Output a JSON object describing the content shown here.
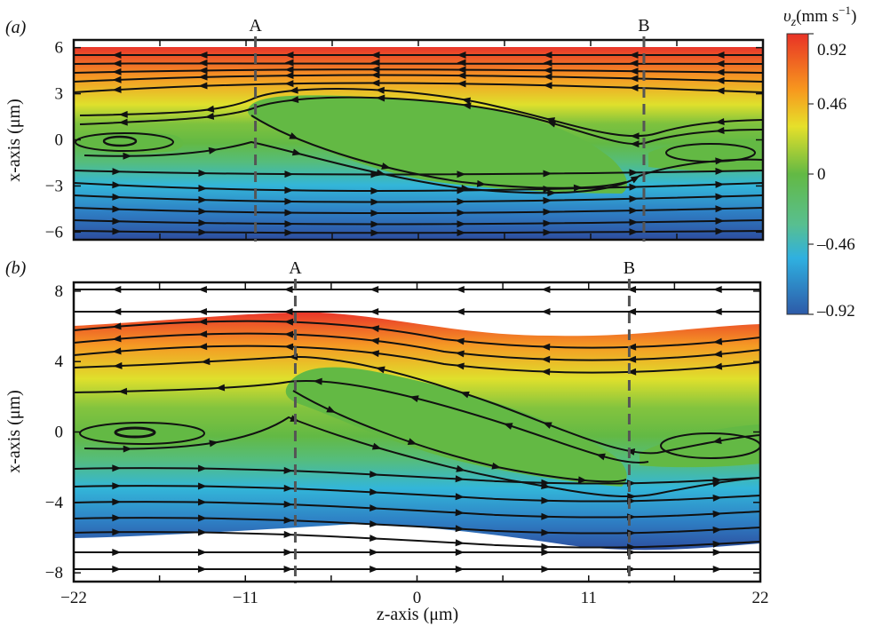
{
  "chart_data": [
    {
      "type": "heatmap",
      "panel_label": "(a)",
      "xlabel": "",
      "ylabel": "x-axis (μm)",
      "xlim": [
        -22,
        22
      ],
      "ylim": [
        -6.5,
        6.5
      ],
      "yticks": [
        "6",
        "3",
        "0",
        "−3",
        "−6"
      ],
      "ytick_values": [
        6,
        3,
        0,
        -3,
        -6
      ],
      "xticks": [],
      "xtick_values": [
        -22,
        -11,
        0,
        11,
        22
      ],
      "markers": [
        {
          "label": "A",
          "z": -10.4
        },
        {
          "label": "B",
          "z": 14.4
        }
      ],
      "field_extent": {
        "x_top": 6,
        "x_bottom": -6
      },
      "recirculation_zone": {
        "description": "",
        "z": [
          -10,
          14
        ],
        "x_upper": 3,
        "x_lower": -3.2
      },
      "streamlines": 15
    },
    {
      "type": "heatmap",
      "panel_label": "(b)",
      "xlabel": "z-axis (μm)",
      "ylabel": "x-axis (μm)",
      "xlim": [
        -22,
        22
      ],
      "ylim": [
        -8.5,
        8.5
      ],
      "yticks": [
        "8",
        "4",
        "0",
        "−4",
        "−8"
      ],
      "ytick_values": [
        8,
        4,
        0,
        -4,
        -8
      ],
      "xticks": [
        "−22",
        "−11",
        "0",
        "11",
        "22"
      ],
      "xtick_values": [
        -22,
        -11,
        0,
        11,
        22
      ],
      "markers": [
        {
          "label": "A",
          "z": -7.8
        },
        {
          "label": "B",
          "z": 13.6
        }
      ],
      "recirculation_zone": {
        "z": [
          -7,
          13
        ],
        "x_upper": 3.5,
        "x_lower": -4
      },
      "streamlines": 19
    }
  ],
  "colorbar": {
    "title_symbol": "υ",
    "title_sub": "z",
    "title_unit": "(mm s",
    "title_exp": "−1",
    "title_close": ")",
    "tick_labels": [
      "0.92",
      "0.46",
      "0",
      "–0.46",
      "–0.92"
    ],
    "tick_values": [
      0.92,
      0.46,
      0,
      -0.46,
      -0.92
    ],
    "range": [
      -0.92,
      0.92
    ],
    "colors": [
      "#e83226",
      "#f7981e",
      "#e6e02a",
      "#63b944",
      "#2fb0e0",
      "#2d5aa8"
    ]
  }
}
